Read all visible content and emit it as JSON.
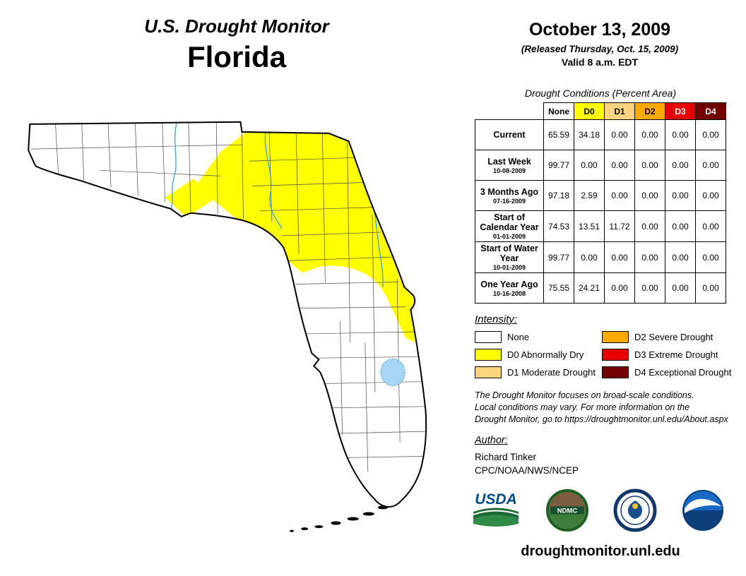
{
  "header": {
    "title": "U.S. Drought Monitor",
    "region": "Florida"
  },
  "date_block": {
    "date": "October 13, 2009",
    "released": "(Released Thursday, Oct. 15, 2009)",
    "valid": "Valid 8 a.m. EDT"
  },
  "table": {
    "title": "Drought Conditions (Percent Area)",
    "columns": [
      "None",
      "D0",
      "D1",
      "D2",
      "D3",
      "D4"
    ],
    "column_colors": [
      "#ffffff",
      "#ffff00",
      "#fcd37f",
      "#ffaa00",
      "#e60000",
      "#730000"
    ],
    "column_text_colors": [
      "#000000",
      "#000000",
      "#000000",
      "#000000",
      "#ffffff",
      "#ffffff"
    ],
    "rows": [
      {
        "label": "Current",
        "sub": "",
        "values": [
          "65.59",
          "34.18",
          "0.00",
          "0.00",
          "0.00",
          "0.00"
        ]
      },
      {
        "label": "Last Week",
        "sub": "10-08-2009",
        "values": [
          "99.77",
          "0.00",
          "0.00",
          "0.00",
          "0.00",
          "0.00"
        ]
      },
      {
        "label": "3 Months Ago",
        "sub": "07-16-2009",
        "values": [
          "97.18",
          "2.59",
          "0.00",
          "0.00",
          "0.00",
          "0.00"
        ]
      },
      {
        "label": "Start of Calendar Year",
        "sub": "01-01-2009",
        "values": [
          "74.53",
          "13.51",
          "11.72",
          "0.00",
          "0.00",
          "0.00"
        ]
      },
      {
        "label": "Start of Water Year",
        "sub": "10-01-2009",
        "values": [
          "99.77",
          "0.00",
          "0.00",
          "0.00",
          "0.00",
          "0.00"
        ]
      },
      {
        "label": "One Year Ago",
        "sub": "10-16-2008",
        "values": [
          "75.55",
          "24.21",
          "0.00",
          "0.00",
          "0.00",
          "0.00"
        ]
      }
    ]
  },
  "legend": {
    "title": "Intensity:",
    "items": [
      {
        "code": "none",
        "label": "None",
        "color": "#ffffff"
      },
      {
        "code": "d0",
        "label": "D0 Abnormally Dry",
        "color": "#ffff00"
      },
      {
        "code": "d1",
        "label": "D1 Moderate Drought",
        "color": "#fcd37f"
      },
      {
        "code": "d2",
        "label": "D2 Severe Drought",
        "color": "#ffaa00"
      },
      {
        "code": "d3",
        "label": "D3 Extreme Drought",
        "color": "#e60000"
      },
      {
        "code": "d4",
        "label": "D4 Exceptional Drought",
        "color": "#730000"
      }
    ]
  },
  "disclaimer": {
    "lines": [
      "The Drought Monitor focuses on broad-scale conditions.",
      "Local conditions may vary. For more information on the",
      "Drought Monitor, go to https://droughtmonitor.unl.edu/About.aspx"
    ]
  },
  "author": {
    "title": "Author:",
    "name": "Richard Tinker",
    "org": "CPC/NOAA/NWS/NCEP"
  },
  "logos": {
    "usda": "USDA",
    "ndmc": "NDMC"
  },
  "footer": {
    "url": "droughtmonitor.unl.edu"
  },
  "map": {
    "region": "Florida",
    "drought_shown": "D0 Abnormally Dry over north / northeast Florida",
    "colors": {
      "none": "#ffffff",
      "d0": "#ffff00",
      "water": "#a6d5f5",
      "outline": "#000000"
    }
  }
}
